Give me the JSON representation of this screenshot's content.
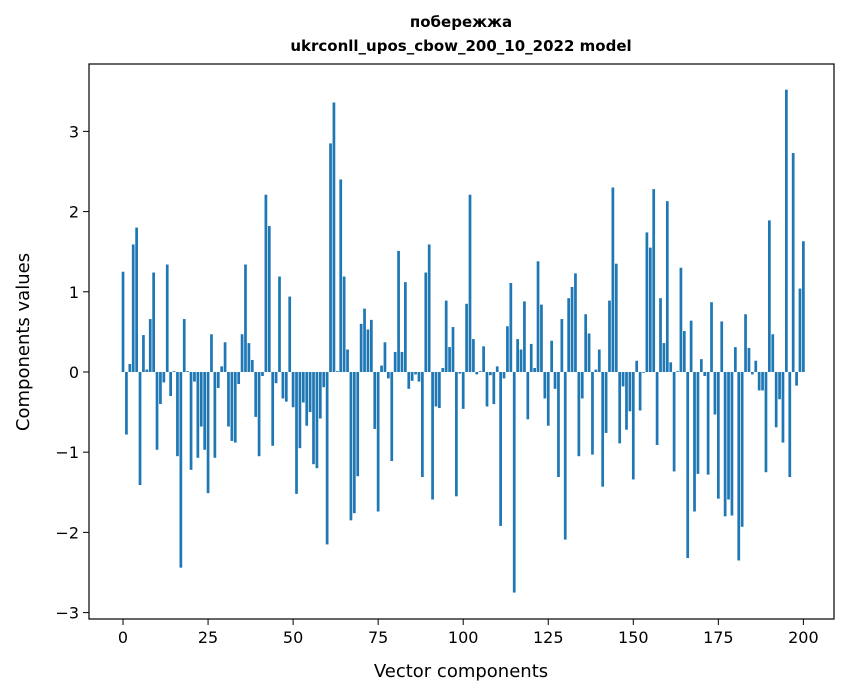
{
  "chart_data": {
    "type": "bar",
    "title": "побережжа",
    "subtitle": "ukrconll_upos_cbow_200_10_2022 model",
    "xlabel": "Vector components",
    "ylabel": "Components values",
    "xlim": [
      -10,
      209
    ],
    "ylim": [
      -3.08,
      3.84
    ],
    "xticks": [
      0,
      25,
      50,
      75,
      100,
      125,
      150,
      175,
      200
    ],
    "yticks": [
      -3,
      -2,
      -1,
      0,
      1,
      2,
      3
    ],
    "grid": false,
    "color": "#1f77b4",
    "values": [
      1.25,
      -0.78,
      0.1,
      1.59,
      1.8,
      -1.41,
      0.46,
      0.03,
      0.66,
      1.24,
      -0.97,
      -0.4,
      -0.13,
      1.34,
      -0.3,
      0.01,
      -1.05,
      -2.44,
      0.66,
      0.01,
      -1.22,
      -0.12,
      -1.07,
      -0.68,
      -0.97,
      -1.51,
      0.47,
      -1.07,
      -0.2,
      0.07,
      0.37,
      -0.68,
      -0.86,
      -0.88,
      -0.15,
      0.47,
      1.34,
      0.36,
      0.15,
      -0.56,
      -1.05,
      -0.05,
      2.21,
      1.82,
      -0.92,
      -0.14,
      1.19,
      -0.33,
      -0.37,
      0.94,
      -0.44,
      -1.52,
      -0.95,
      -0.38,
      -0.67,
      -0.5,
      -1.15,
      -1.2,
      -0.58,
      -0.19,
      -2.15,
      2.85,
      3.36,
      0.01,
      2.4,
      1.19,
      0.28,
      -1.85,
      -1.76,
      -1.3,
      0.6,
      0.79,
      0.53,
      0.65,
      -0.71,
      -1.74,
      0.08,
      0.37,
      -0.08,
      -1.11,
      0.25,
      1.51,
      0.25,
      1.12,
      -0.21,
      -0.11,
      -0.03,
      -0.12,
      -1.31,
      1.24,
      1.59,
      -1.59,
      -0.43,
      -0.45,
      0.05,
      0.89,
      0.31,
      0.56,
      -1.55,
      -0.02,
      -0.46,
      0.85,
      2.21,
      0.41,
      -0.03,
      0.01,
      0.32,
      -0.43,
      -0.04,
      -0.4,
      0.07,
      -1.92,
      -0.08,
      0.57,
      1.11,
      -2.75,
      0.41,
      0.28,
      0.88,
      -0.59,
      0.35,
      0.05,
      1.38,
      0.84,
      -0.33,
      -0.67,
      0.39,
      -0.21,
      -1.31,
      0.66,
      -2.09,
      0.92,
      1.06,
      1.23,
      -1.05,
      -0.33,
      0.72,
      0.48,
      -1.03,
      0.03,
      0.28,
      -1.43,
      -0.76,
      0.89,
      2.3,
      1.35,
      -0.89,
      -0.18,
      -0.72,
      -0.49,
      -1.34,
      0.14,
      -0.48,
      -0.01,
      1.74,
      1.55,
      2.28,
      -0.91,
      0.92,
      0.36,
      2.13,
      0.12,
      -1.24,
      0.01,
      1.3,
      0.51,
      -2.32,
      0.64,
      -1.74,
      -1.27,
      0.16,
      -0.05,
      -1.28,
      0.87,
      -0.53,
      -1.58,
      0.63,
      -1.8,
      -1.59,
      -1.79,
      0.31,
      -2.35,
      -1.93,
      0.72,
      0.3,
      -0.03,
      0.14,
      -0.23,
      -0.23,
      -1.25,
      1.89,
      0.47,
      -0.69,
      -0.34,
      -0.88,
      3.52,
      -1.31,
      2.73,
      -0.17,
      1.04,
      1.63
    ]
  }
}
